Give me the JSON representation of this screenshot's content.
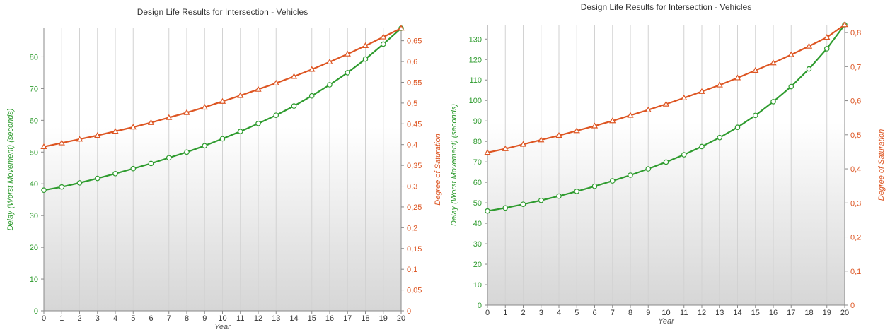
{
  "chart_data": [
    {
      "type": "line",
      "title": "Design Life Results for Intersection - Vehicles",
      "xlabel": "Year",
      "ylabel_left": "Delay (Worst Movement) (seconds)",
      "ylabel_right": "Degree of Saturation",
      "colors": {
        "left": "#2e9b2e",
        "right": "#dd5522"
      },
      "x": [
        0,
        1,
        2,
        3,
        4,
        5,
        6,
        7,
        8,
        9,
        10,
        11,
        12,
        13,
        14,
        15,
        16,
        17,
        18,
        19,
        20
      ],
      "x_ticks": [
        "0",
        "1",
        "2",
        "3",
        "4",
        "5",
        "6",
        "7",
        "8",
        "9",
        "10",
        "11",
        "12",
        "13",
        "14",
        "15",
        "16",
        "17",
        "18",
        "19",
        "20"
      ],
      "y_left_range": [
        0,
        89
      ],
      "y_left_ticks": [
        "0",
        "10",
        "20",
        "30",
        "40",
        "50",
        "60",
        "70",
        "80"
      ],
      "y_right_range": [
        0,
        0.68
      ],
      "y_right_ticks": [
        "0",
        "0,05",
        "0,1",
        "0,15",
        "0,2",
        "0,25",
        "0,3",
        "0,35",
        "0,4",
        "0,45",
        "0,5",
        "0,55",
        "0,6",
        "0,65"
      ],
      "grid": "vertical",
      "series": [
        {
          "axis": "left",
          "marker": "circle",
          "values": [
            38,
            39,
            40.3,
            41.7,
            43.2,
            44.8,
            46.4,
            48.2,
            50,
            52,
            54.2,
            56.5,
            59,
            61.6,
            64.5,
            67.7,
            71.2,
            75,
            79.3,
            84,
            89
          ]
        },
        {
          "axis": "right",
          "marker": "triangle",
          "values": [
            0.395,
            0.404,
            0.413,
            0.422,
            0.432,
            0.442,
            0.453,
            0.465,
            0.477,
            0.49,
            0.504,
            0.518,
            0.533,
            0.548,
            0.564,
            0.581,
            0.599,
            0.618,
            0.638,
            0.659,
            0.68
          ]
        }
      ]
    },
    {
      "type": "line",
      "title": "Design Life Results for Intersection - Vehicles",
      "xlabel": "Year",
      "ylabel_left": "Delay (Worst Movement) (seconds)",
      "ylabel_right": "Degree of Saturation",
      "colors": {
        "left": "#2e9b2e",
        "right": "#dd5522"
      },
      "x": [
        0,
        1,
        2,
        3,
        4,
        5,
        6,
        7,
        8,
        9,
        10,
        11,
        12,
        13,
        14,
        15,
        16,
        17,
        18,
        19,
        20
      ],
      "x_ticks": [
        "0",
        "1",
        "2",
        "3",
        "4",
        "5",
        "6",
        "7",
        "8",
        "9",
        "10",
        "11",
        "12",
        "13",
        "14",
        "15",
        "16",
        "17",
        "18",
        "19",
        "20"
      ],
      "y_left_range": [
        0,
        137
      ],
      "y_left_ticks": [
        "0",
        "10",
        "20",
        "30",
        "40",
        "50",
        "60",
        "70",
        "80",
        "90",
        "100",
        "110",
        "120",
        "130"
      ],
      "y_right_range": [
        0,
        0.823
      ],
      "y_right_ticks": [
        "0",
        "0,1",
        "0,2",
        "0,3",
        "0,4",
        "0,5",
        "0,6",
        "0,7",
        "0,8"
      ],
      "grid": "vertical",
      "series": [
        {
          "axis": "left",
          "marker": "circle",
          "values": [
            46,
            47.5,
            49.3,
            51.2,
            53.3,
            55.6,
            58.1,
            60.7,
            63.5,
            66.6,
            69.9,
            73.5,
            77.5,
            81.9,
            86.9,
            92.7,
            99.4,
            106.8,
            115.4,
            125.3,
            137
          ]
        },
        {
          "axis": "right",
          "marker": "triangle",
          "values": [
            0.448,
            0.459,
            0.472,
            0.485,
            0.498,
            0.512,
            0.526,
            0.541,
            0.557,
            0.573,
            0.59,
            0.608,
            0.627,
            0.646,
            0.667,
            0.689,
            0.711,
            0.735,
            0.76,
            0.786,
            0.823
          ]
        }
      ]
    }
  ]
}
